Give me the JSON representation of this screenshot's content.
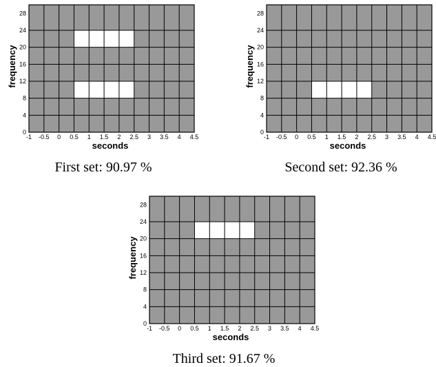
{
  "chart_data": [
    {
      "type": "heatmap",
      "xlabel": "seconds",
      "ylabel": "frequency",
      "xlim": [
        -1,
        4.5
      ],
      "ylim": [
        0,
        30
      ],
      "x_ticks": [
        "-1",
        "-0.5",
        "0",
        "0.5",
        "1",
        "1.5",
        "2",
        "2.5",
        "3",
        "3.5",
        "4",
        "4.5"
      ],
      "y_ticks": [
        "0",
        "4",
        "8",
        "12",
        "16",
        "20",
        "24",
        "28"
      ],
      "x_cell_edges": [
        -1,
        -0.5,
        0,
        0.5,
        1,
        1.5,
        2,
        2.5,
        3,
        3.5,
        4,
        4.5
      ],
      "y_cell_edges": [
        0,
        4,
        8,
        12,
        16,
        20,
        24,
        30
      ],
      "cell_colors": {
        "off": "#999999",
        "on": "#ffffff",
        "grid": "#000000"
      },
      "highlighted_cells": [
        {
          "x": [
            0.5,
            2.5
          ],
          "y": [
            20,
            24
          ]
        },
        {
          "x": [
            0.5,
            2.5
          ],
          "y": [
            8,
            12
          ]
        }
      ],
      "caption": "First set: 90.97 %"
    },
    {
      "type": "heatmap",
      "xlabel": "seconds",
      "ylabel": "frequency",
      "xlim": [
        -1,
        4.5
      ],
      "ylim": [
        0,
        30
      ],
      "x_ticks": [
        "-1",
        "-0.5",
        "0",
        "0.5",
        "1",
        "1.5",
        "2",
        "2.5",
        "3",
        "3.5",
        "4",
        "4.5"
      ],
      "y_ticks": [
        "0",
        "4",
        "8",
        "12",
        "16",
        "20",
        "24",
        "28"
      ],
      "x_cell_edges": [
        -1,
        -0.5,
        0,
        0.5,
        1,
        1.5,
        2,
        2.5,
        3,
        3.5,
        4,
        4.5
      ],
      "y_cell_edges": [
        0,
        4,
        8,
        12,
        16,
        20,
        24,
        30
      ],
      "cell_colors": {
        "off": "#999999",
        "on": "#ffffff",
        "grid": "#000000"
      },
      "highlighted_cells": [
        {
          "x": [
            0.5,
            2.5
          ],
          "y": [
            8,
            12
          ]
        }
      ],
      "caption": "Second set: 92.36 %"
    },
    {
      "type": "heatmap",
      "xlabel": "seconds",
      "ylabel": "frequency",
      "xlim": [
        -1,
        4.5
      ],
      "ylim": [
        0,
        30
      ],
      "x_ticks": [
        "-1",
        "-0.5",
        "0",
        "0.5",
        "1",
        "1.5",
        "2",
        "2.5",
        "3",
        "3.5",
        "4",
        "4.5"
      ],
      "y_ticks": [
        "0",
        "4",
        "8",
        "12",
        "16",
        "20",
        "24",
        "28"
      ],
      "x_cell_edges": [
        -1,
        -0.5,
        0,
        0.5,
        1,
        1.5,
        2,
        2.5,
        3,
        3.5,
        4,
        4.5
      ],
      "y_cell_edges": [
        0,
        4,
        8,
        12,
        16,
        20,
        24,
        30
      ],
      "cell_colors": {
        "off": "#999999",
        "on": "#ffffff",
        "grid": "#000000"
      },
      "highlighted_cells": [
        {
          "x": [
            0.5,
            2.5
          ],
          "y": [
            20,
            24
          ]
        }
      ],
      "caption": "Third set: 91.67 %"
    }
  ]
}
